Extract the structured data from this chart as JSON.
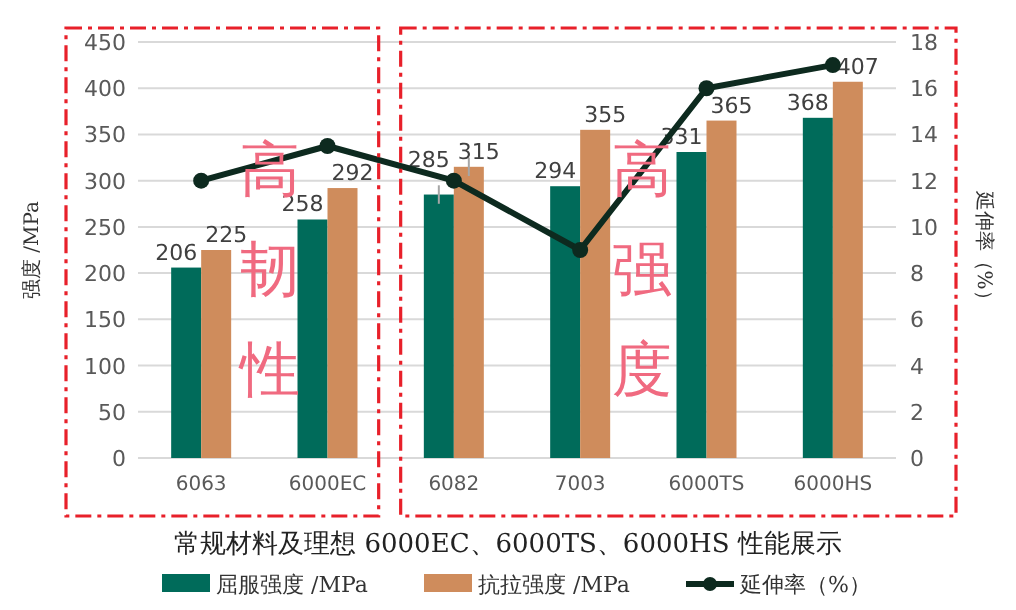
{
  "chart_data": {
    "type": "bar",
    "title": "常规材料及理想 6000EC、6000TS、6000HS 性能展示",
    "ylabel": "强度 /MPa",
    "y2label": "延伸率（%）",
    "categories": [
      "6063",
      "6000EC",
      "6082",
      "7003",
      "6000TS",
      "6000HS"
    ],
    "series": [
      {
        "name": "屈服强度 /MPa",
        "color": "#006b5a",
        "values": [
          206,
          258,
          285,
          294,
          331,
          368
        ],
        "value_labels": [
          "206",
          "258",
          "285",
          "294",
          "331",
          "368"
        ],
        "errors": [
          null,
          null,
          10,
          null,
          null,
          null
        ]
      },
      {
        "name": "抗拉强度 /MPa",
        "color": "#cf8c5c",
        "values": [
          225,
          292,
          315,
          355,
          365,
          407
        ],
        "value_labels": [
          "225",
          "292",
          "315",
          "355",
          "365",
          "407"
        ],
        "errors": [
          null,
          null,
          10,
          null,
          null,
          null
        ]
      },
      {
        "name": "延伸率（%）",
        "type": "line",
        "axis": "y2",
        "color": "#0d2a1f",
        "marker": "circle",
        "values": [
          12,
          13.5,
          12,
          9,
          16,
          17
        ]
      }
    ],
    "ylim": [
      0,
      450
    ],
    "yticks": [
      0,
      50,
      100,
      150,
      200,
      250,
      300,
      350,
      400,
      450
    ],
    "y2lim": [
      0,
      18
    ],
    "y2ticks": [
      0,
      2,
      4,
      6,
      8,
      10,
      12,
      14,
      16,
      18
    ],
    "grid": "y",
    "legend": "bottom",
    "annotations": [
      "高韧性",
      "高强度"
    ]
  }
}
